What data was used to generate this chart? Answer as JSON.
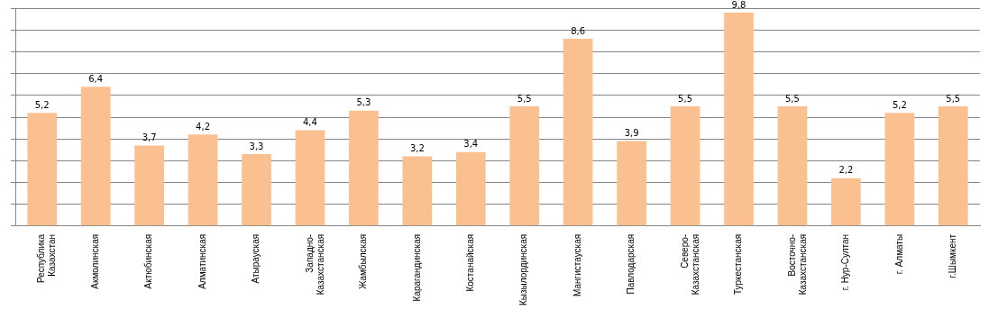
{
  "chart_data": {
    "type": "bar",
    "categories": [
      "Республика\nКазахстан",
      "Акмолинская",
      "Актюбинская",
      "Алматинская",
      "Атырауская",
      "Западно-\nКазахстанская",
      "Жамбылская",
      "Карагандинская",
      "Костанайская",
      "Кызылординская",
      "Мангистауская",
      "Павлодарская",
      "Северо-\nКазахстанская",
      "Туркестанская",
      "Восточно-\nКазахстанская",
      "г. Нур-Султан",
      "г. Алматы",
      "г.Шымкент"
    ],
    "values": [
      5.2,
      6.4,
      3.7,
      4.2,
      3.3,
      4.4,
      5.3,
      3.2,
      3.4,
      5.5,
      8.6,
      3.9,
      5.5,
      9.8,
      5.5,
      2.2,
      5.2,
      5.5
    ],
    "value_labels": [
      "5,2",
      "6,4",
      "3,7",
      "4,2",
      "3,3",
      "4,4",
      "5,3",
      "3,2",
      "3,4",
      "5,5",
      "8,6",
      "3,9",
      "5,5",
      "9,8",
      "5,5",
      "2,2",
      "5,2",
      "5,5"
    ],
    "color": "#fac090",
    "tick_labels": "x",
    "grid": "y"
  }
}
